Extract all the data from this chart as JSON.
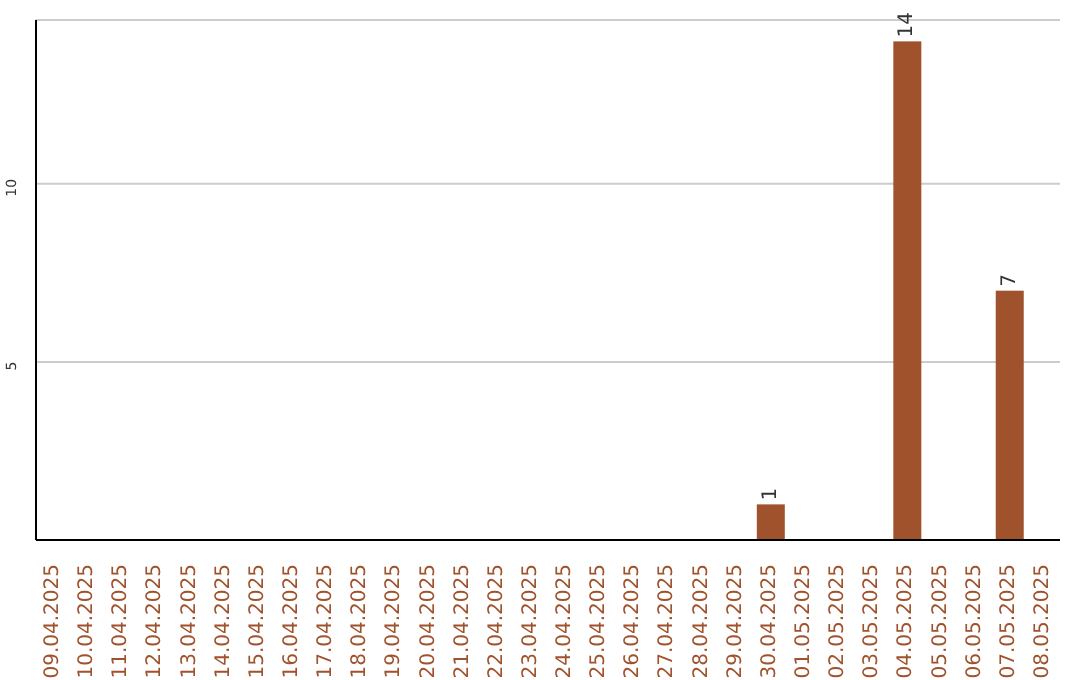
{
  "chart_data": {
    "type": "bar",
    "categories": [
      "09.04.2025",
      "10.04.2025",
      "11.04.2025",
      "12.04.2025",
      "13.04.2025",
      "14.04.2025",
      "15.04.2025",
      "16.04.2025",
      "17.04.2025",
      "18.04.2025",
      "19.04.2025",
      "20.04.2025",
      "21.04.2025",
      "22.04.2025",
      "23.04.2025",
      "24.04.2025",
      "25.04.2025",
      "26.04.2025",
      "27.04.2025",
      "28.04.2025",
      "29.04.2025",
      "30.04.2025",
      "01.05.2025",
      "02.05.2025",
      "03.05.2025",
      "04.05.2025",
      "05.05.2025",
      "06.05.2025",
      "07.05.2025",
      "08.05.2025"
    ],
    "values": [
      0,
      0,
      0,
      0,
      0,
      0,
      0,
      0,
      0,
      0,
      0,
      0,
      0,
      0,
      0,
      0,
      0,
      0,
      0,
      0,
      0,
      1,
      0,
      0,
      0,
      14,
      0,
      0,
      7,
      0
    ],
    "value_labels": [
      null,
      null,
      null,
      null,
      null,
      null,
      null,
      null,
      null,
      null,
      null,
      null,
      null,
      null,
      null,
      null,
      null,
      null,
      null,
      null,
      null,
      "1",
      null,
      null,
      null,
      "14",
      null,
      null,
      "7",
      null
    ],
    "color": "#a0522d",
    "ylim": [
      0,
      14.6
    ],
    "yticks": [
      5,
      10
    ],
    "grid": "y"
  }
}
